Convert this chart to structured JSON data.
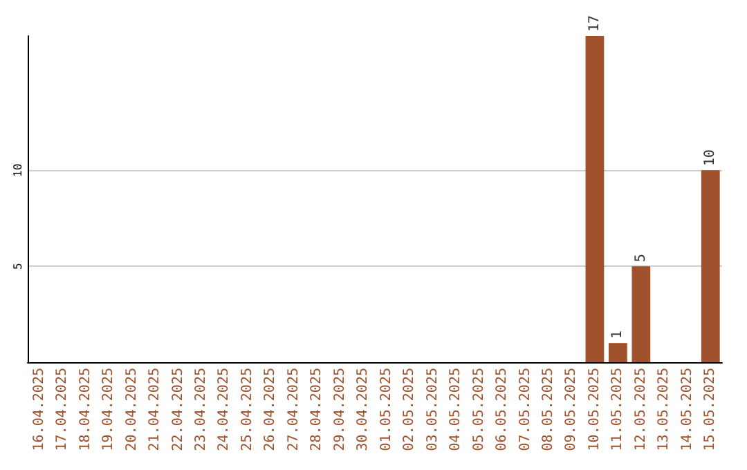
{
  "chart_data": {
    "type": "bar",
    "categories": [
      "16.04.2025",
      "17.04.2025",
      "18.04.2025",
      "19.04.2025",
      "20.04.2025",
      "21.04.2025",
      "22.04.2025",
      "23.04.2025",
      "24.04.2025",
      "25.04.2025",
      "26.04.2025",
      "27.04.2025",
      "28.04.2025",
      "29.04.2025",
      "30.04.2025",
      "01.05.2025",
      "02.05.2025",
      "03.05.2025",
      "04.05.2025",
      "05.05.2025",
      "06.05.2025",
      "07.05.2025",
      "08.05.2025",
      "09.05.2025",
      "10.05.2025",
      "11.05.2025",
      "12.05.2025",
      "13.05.2025",
      "14.05.2025",
      "15.05.2025"
    ],
    "values": [
      0,
      0,
      0,
      0,
      0,
      0,
      0,
      0,
      0,
      0,
      0,
      0,
      0,
      0,
      0,
      0,
      0,
      0,
      0,
      0,
      0,
      0,
      0,
      0,
      17,
      1,
      5,
      0,
      0,
      10
    ],
    "value_labels": [
      null,
      null,
      null,
      null,
      null,
      null,
      null,
      null,
      null,
      null,
      null,
      null,
      null,
      null,
      null,
      null,
      null,
      null,
      null,
      null,
      null,
      null,
      null,
      null,
      "17",
      "1",
      "5",
      null,
      null,
      "10"
    ],
    "color": "#a0522d",
    "ylim": [
      0,
      17
    ],
    "yticks": [
      5,
      10
    ],
    "grid": "y"
  }
}
